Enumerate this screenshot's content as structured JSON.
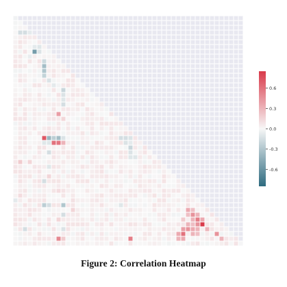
{
  "figure": {
    "caption": "Figure 2: Correlation Heatmap"
  },
  "chart_data": {
    "type": "heatmap",
    "title": "",
    "xlabel": "",
    "ylabel": "",
    "matrix_size": 48,
    "mask": "upper-triangle",
    "masked_color": "#e8e8f0",
    "cell_gap_color": "#ffffff",
    "default_value": 0.03,
    "colormap": {
      "name": "diverging blue-white-red",
      "negative": "#2e6b80",
      "center": "#f7f7f7",
      "positive": "#d93a4a"
    },
    "vmin": -0.85,
    "vmax": 0.85,
    "colorbar": {
      "ticks": [
        0.6,
        0.3,
        0.0,
        -0.3,
        -0.6
      ],
      "tick_labels": [
        "0.6",
        "0.3",
        "0.0",
        "-0.3",
        "-0.6"
      ]
    },
    "cells": [
      {
        "row": 3,
        "col": 1,
        "value": -0.15
      },
      {
        "row": 3,
        "col": 2,
        "value": -0.15
      },
      {
        "row": 3,
        "col": 3,
        "value": -0.08
      },
      {
        "row": 6,
        "col": 4,
        "value": -0.08
      },
      {
        "row": 6,
        "col": 5,
        "value": -0.1
      },
      {
        "row": 7,
        "col": 4,
        "value": -0.55
      },
      {
        "row": 7,
        "col": 5,
        "value": -0.12
      },
      {
        "row": 8,
        "col": 3,
        "value": -0.06
      },
      {
        "row": 9,
        "col": 6,
        "value": -0.18
      },
      {
        "row": 10,
        "col": 6,
        "value": -0.35
      },
      {
        "row": 11,
        "col": 6,
        "value": -0.3
      },
      {
        "row": 12,
        "col": 6,
        "value": -0.22
      },
      {
        "row": 13,
        "col": 7,
        "value": -0.12
      },
      {
        "row": 14,
        "col": 8,
        "value": -0.08
      },
      {
        "row": 15,
        "col": 10,
        "value": -0.2
      },
      {
        "row": 16,
        "col": 10,
        "value": -0.12
      },
      {
        "row": 17,
        "col": 10,
        "value": -0.1
      },
      {
        "row": 18,
        "col": 10,
        "value": -0.15
      },
      {
        "row": 20,
        "col": 9,
        "value": 0.4
      },
      {
        "row": 21,
        "col": 10,
        "value": 0.15
      },
      {
        "row": 25,
        "col": 6,
        "value": 0.72
      },
      {
        "row": 25,
        "col": 7,
        "value": -0.4
      },
      {
        "row": 25,
        "col": 8,
        "value": -0.25
      },
      {
        "row": 25,
        "col": 9,
        "value": -0.35
      },
      {
        "row": 25,
        "col": 10,
        "value": -0.12
      },
      {
        "row": 25,
        "col": 22,
        "value": -0.15
      },
      {
        "row": 25,
        "col": 23,
        "value": -0.15
      },
      {
        "row": 25,
        "col": 24,
        "value": -0.12
      },
      {
        "row": 26,
        "col": 6,
        "value": -0.1
      },
      {
        "row": 26,
        "col": 7,
        "value": -0.1
      },
      {
        "row": 26,
        "col": 8,
        "value": 0.6
      },
      {
        "row": 26,
        "col": 9,
        "value": 0.58
      },
      {
        "row": 26,
        "col": 10,
        "value": 0.3
      },
      {
        "row": 26,
        "col": 23,
        "value": -0.12
      },
      {
        "row": 26,
        "col": 24,
        "value": -0.08
      },
      {
        "row": 27,
        "col": 24,
        "value": -0.2
      },
      {
        "row": 28,
        "col": 7,
        "value": -0.15
      },
      {
        "row": 28,
        "col": 24,
        "value": -0.12
      },
      {
        "row": 29,
        "col": 24,
        "value": -0.1
      },
      {
        "row": 29,
        "col": 25,
        "value": -0.1
      },
      {
        "row": 30,
        "col": 1,
        "value": 0.2
      },
      {
        "row": 30,
        "col": 3,
        "value": 0.15
      },
      {
        "row": 31,
        "col": 7,
        "value": -0.1
      },
      {
        "row": 33,
        "col": 7,
        "value": 0.15
      },
      {
        "row": 34,
        "col": 6,
        "value": -0.15
      },
      {
        "row": 36,
        "col": 9,
        "value": 0.12
      },
      {
        "row": 37,
        "col": 1,
        "value": 0.12
      },
      {
        "row": 38,
        "col": 0,
        "value": -0.08
      },
      {
        "row": 38,
        "col": 12,
        "value": 0.1
      },
      {
        "row": 39,
        "col": 6,
        "value": -0.25
      },
      {
        "row": 39,
        "col": 7,
        "value": -0.15
      },
      {
        "row": 39,
        "col": 10,
        "value": -0.3
      },
      {
        "row": 39,
        "col": 22,
        "value": -0.1
      },
      {
        "row": 40,
        "col": 12,
        "value": 0.15
      },
      {
        "row": 40,
        "col": 36,
        "value": 0.35
      },
      {
        "row": 40,
        "col": 37,
        "value": 0.25
      },
      {
        "row": 41,
        "col": 10,
        "value": -0.15
      },
      {
        "row": 41,
        "col": 36,
        "value": 0.25
      },
      {
        "row": 41,
        "col": 37,
        "value": 0.45
      },
      {
        "row": 41,
        "col": 38,
        "value": 0.3
      },
      {
        "row": 42,
        "col": 9,
        "value": 0.15
      },
      {
        "row": 42,
        "col": 35,
        "value": 0.2
      },
      {
        "row": 42,
        "col": 37,
        "value": 0.3
      },
      {
        "row": 42,
        "col": 38,
        "value": 0.55
      },
      {
        "row": 42,
        "col": 39,
        "value": 0.35
      },
      {
        "row": 43,
        "col": 36,
        "value": 0.3
      },
      {
        "row": 43,
        "col": 37,
        "value": 0.25
      },
      {
        "row": 43,
        "col": 38,
        "value": 0.45
      },
      {
        "row": 43,
        "col": 39,
        "value": 0.85
      },
      {
        "row": 44,
        "col": 2,
        "value": -0.15
      },
      {
        "row": 44,
        "col": 10,
        "value": -0.12
      },
      {
        "row": 44,
        "col": 35,
        "value": 0.4
      },
      {
        "row": 44,
        "col": 36,
        "value": 0.45
      },
      {
        "row": 44,
        "col": 37,
        "value": 0.35
      },
      {
        "row": 44,
        "col": 38,
        "value": 0.3
      },
      {
        "row": 44,
        "col": 40,
        "value": 0.3
      },
      {
        "row": 45,
        "col": 34,
        "value": 0.35
      },
      {
        "row": 45,
        "col": 35,
        "value": 0.6
      },
      {
        "row": 45,
        "col": 37,
        "value": 0.3
      },
      {
        "row": 45,
        "col": 38,
        "value": 0.25
      },
      {
        "row": 45,
        "col": 42,
        "value": 0.45
      },
      {
        "row": 46,
        "col": 9,
        "value": 0.5
      },
      {
        "row": 46,
        "col": 10,
        "value": 0.2
      },
      {
        "row": 46,
        "col": 24,
        "value": 0.55
      },
      {
        "row": 46,
        "col": 34,
        "value": 0.3
      },
      {
        "row": 46,
        "col": 35,
        "value": 0.35
      },
      {
        "row": 46,
        "col": 43,
        "value": 0.3
      }
    ]
  }
}
